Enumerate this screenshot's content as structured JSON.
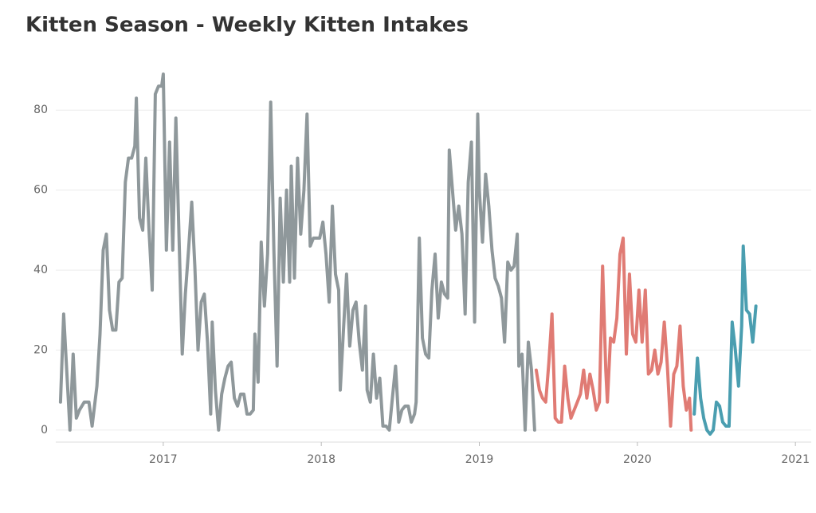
{
  "chart_data": {
    "type": "line",
    "title": "Kitten Season - Weekly Kitten Intakes",
    "xlim": [
      2016.32,
      2021.1
    ],
    "xticks": [
      2017,
      2018,
      2019,
      2020,
      2021
    ],
    "ylim": [
      -3,
      90
    ],
    "yticks": [
      0,
      20,
      40,
      60,
      80
    ],
    "grid": true,
    "series": [
      {
        "color": "#8f989b",
        "x": [
          2016.35,
          2016.37,
          2016.41,
          2016.43,
          2016.45,
          2016.47,
          2016.5,
          2016.53,
          2016.55,
          2016.58,
          2016.6,
          2016.62,
          2016.64,
          2016.66,
          2016.68,
          2016.7,
          2016.72,
          2016.74,
          2016.76,
          2016.78,
          2016.8,
          2016.82,
          2016.83,
          2016.85,
          2016.87,
          2016.89,
          2016.91,
          2016.93,
          2016.95,
          2016.97,
          2016.99,
          2017.0,
          2017.02,
          2017.04,
          2017.06,
          2017.08,
          2017.1,
          2017.12,
          2017.14,
          2017.16,
          2017.18,
          2017.2,
          2017.22,
          2017.24,
          2017.26,
          2017.28,
          2017.3,
          2017.31,
          2017.33,
          2017.35,
          2017.37,
          2017.39,
          2017.41,
          2017.43,
          2017.45,
          2017.47,
          2017.49,
          2017.51,
          2017.53,
          2017.55,
          2017.57,
          2017.58,
          2017.6,
          2017.62,
          2017.64,
          2017.66,
          2017.68,
          2017.7,
          2017.72,
          2017.74,
          2017.76,
          2017.78,
          2017.8,
          2017.81,
          2017.83,
          2017.85,
          2017.87,
          2017.89,
          2017.91,
          2017.93,
          2017.95,
          2017.97,
          2017.99,
          2018.01,
          2018.03,
          2018.05,
          2018.07,
          2018.09,
          2018.11,
          2018.12,
          2018.14,
          2018.16,
          2018.18,
          2018.2,
          2018.22,
          2018.24,
          2018.26,
          2018.28,
          2018.29,
          2018.31,
          2018.33,
          2018.35,
          2018.37,
          2018.39,
          2018.41,
          2018.43,
          2018.45,
          2018.47,
          2018.49,
          2018.51,
          2018.53,
          2018.55,
          2018.57,
          2018.59,
          2018.6,
          2018.62,
          2018.64,
          2018.66,
          2018.68,
          2018.7,
          2018.72,
          2018.74,
          2018.76,
          2018.78,
          2018.8,
          2018.81,
          2018.83,
          2018.85,
          2018.87,
          2018.89,
          2018.91,
          2018.93,
          2018.95,
          2018.97,
          2018.99,
          2019.0,
          2019.02,
          2019.04,
          2019.06,
          2019.08,
          2019.1,
          2019.12,
          2019.14,
          2019.16,
          2019.18,
          2019.2,
          2019.22,
          2019.24,
          2019.25,
          2019.27,
          2019.29,
          2019.31,
          2019.33,
          2019.35
        ],
        "values": [
          7,
          29,
          0,
          19,
          3,
          5,
          7,
          7,
          1,
          11,
          24,
          45,
          49,
          30,
          25,
          25,
          37,
          38,
          62,
          68,
          68,
          71,
          83,
          53,
          50,
          68,
          50,
          35,
          84,
          86,
          86,
          89,
          45,
          72,
          45,
          78,
          48,
          19,
          34,
          45,
          57,
          41,
          20,
          32,
          34,
          22,
          4,
          27,
          10,
          0,
          9,
          13,
          16,
          17,
          8,
          6,
          9,
          9,
          4,
          4,
          5,
          24,
          12,
          47,
          31,
          44,
          82,
          45,
          16,
          58,
          37,
          60,
          37,
          66,
          38,
          68,
          49,
          60,
          79,
          46,
          48,
          48,
          48,
          52,
          44,
          32,
          56,
          39,
          35,
          10,
          25,
          39,
          21,
          30,
          32,
          22,
          15,
          31,
          10,
          7,
          19,
          8,
          13,
          1,
          1,
          0,
          8,
          16,
          2,
          5,
          6,
          6,
          2,
          4,
          7,
          48,
          23,
          19,
          18,
          35,
          44,
          28,
          37,
          34,
          33,
          70,
          60,
          50,
          56,
          49,
          29,
          62,
          72,
          27,
          79,
          60,
          47,
          64,
          56,
          45,
          38,
          36,
          33,
          22,
          42,
          40,
          41,
          49,
          16,
          19,
          0,
          22,
          15,
          0
        ]
      },
      {
        "color": "#e07b74",
        "x": [
          2019.36,
          2019.38,
          2019.4,
          2019.42,
          2019.44,
          2019.46,
          2019.48,
          2019.5,
          2019.52,
          2019.54,
          2019.56,
          2019.58,
          2019.6,
          2019.62,
          2019.64,
          2019.66,
          2019.68,
          2019.7,
          2019.72,
          2019.74,
          2019.76,
          2019.78,
          2019.8,
          2019.81,
          2019.83,
          2019.85,
          2019.87,
          2019.89,
          2019.91,
          2019.93,
          2019.95,
          2019.97,
          2019.99,
          2020.01,
          2020.03,
          2020.05,
          2020.07,
          2020.09,
          2020.11,
          2020.13,
          2020.15,
          2020.17,
          2020.19,
          2020.21,
          2020.23,
          2020.25,
          2020.27,
          2020.29,
          2020.31,
          2020.33,
          2020.34
        ],
        "values": [
          15,
          10,
          8,
          7,
          17,
          29,
          3,
          2,
          2,
          16,
          8,
          3,
          5,
          7,
          9,
          15,
          8,
          14,
          10,
          5,
          7,
          41,
          15,
          7,
          23,
          22,
          28,
          44,
          48,
          19,
          39,
          24,
          22,
          35,
          22,
          35,
          14,
          15,
          20,
          14,
          17,
          27,
          16,
          1,
          14,
          16,
          26,
          11,
          5,
          8,
          0
        ]
      },
      {
        "color": "#4a9eb0",
        "x": [
          2020.36,
          2020.38,
          2020.4,
          2020.42,
          2020.44,
          2020.46,
          2020.48,
          2020.5,
          2020.52,
          2020.54,
          2020.56,
          2020.58,
          2020.6,
          2020.62,
          2020.64,
          2020.66,
          2020.67,
          2020.69,
          2020.71,
          2020.73,
          2020.75
        ],
        "values": [
          4,
          18,
          8,
          3,
          0,
          -1,
          0,
          7,
          6,
          2,
          1,
          1,
          27,
          20,
          11,
          26,
          46,
          30,
          29,
          22,
          31
        ]
      }
    ]
  }
}
